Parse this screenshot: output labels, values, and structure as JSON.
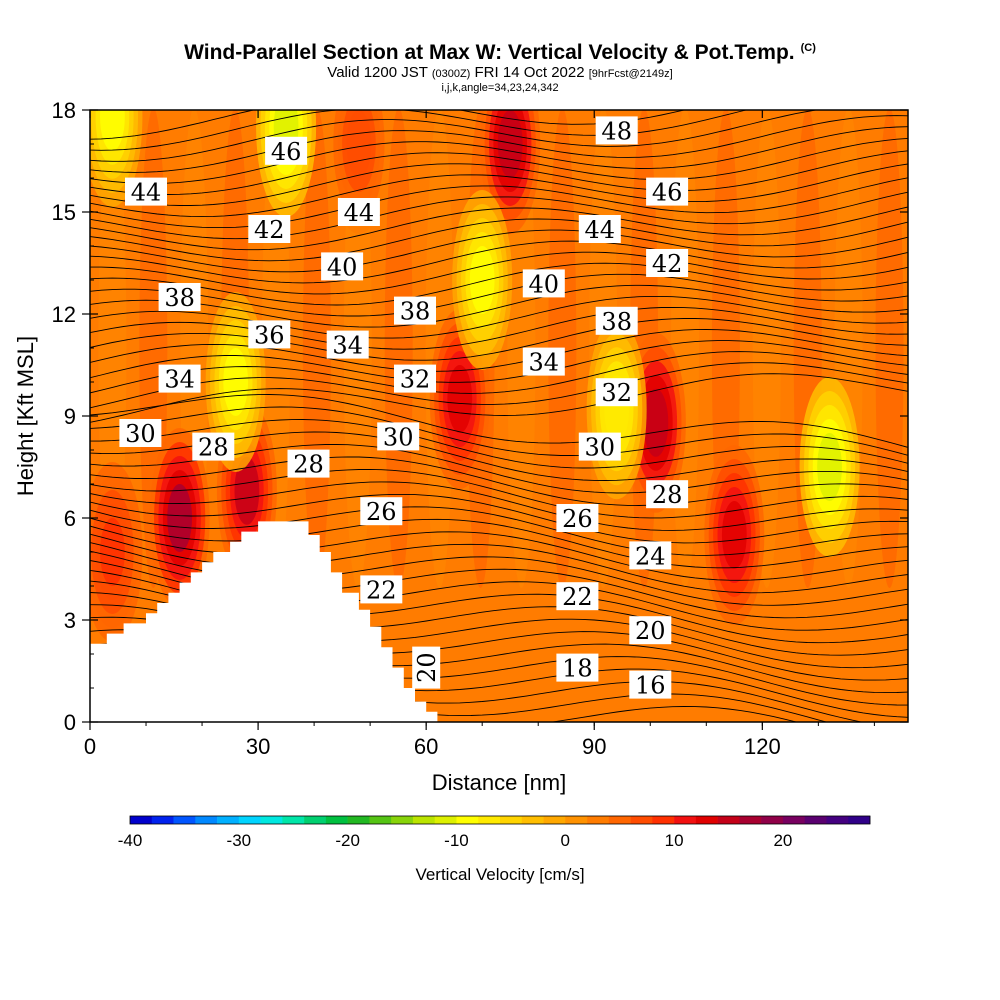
{
  "header": {
    "title": "Wind-Parallel Section at Max W: Vertical Velocity & Pot.Temp.",
    "title_suffix": "(C)",
    "valid_prefix": "Valid 1200 JST",
    "valid_utc": "(0300Z)",
    "valid_date": "FRI 14 Oct 2022",
    "forecast_info": "[9hrFcst@2149z]",
    "section_info": "i,j,k,angle=34,23,24,342"
  },
  "chart_data": {
    "type": "heatmap",
    "xlabel": "Distance [nm]",
    "ylabel": "Height [Kft MSL]",
    "xlim": [
      0,
      146
    ],
    "ylim": [
      0,
      18
    ],
    "x_ticks": [
      "0",
      "30",
      "60",
      "90",
      "120"
    ],
    "x_tick_values": [
      0,
      30,
      60,
      90,
      120
    ],
    "y_ticks": [
      "0",
      "3",
      "6",
      "9",
      "12",
      "15",
      "18"
    ],
    "y_tick_values": [
      0,
      3,
      6,
      9,
      12,
      15,
      18
    ],
    "terrain": [
      [
        0,
        2.3
      ],
      [
        3,
        2.3
      ],
      [
        3,
        2.6
      ],
      [
        6,
        2.6
      ],
      [
        6,
        2.9
      ],
      [
        10,
        2.9
      ],
      [
        10,
        3.2
      ],
      [
        12,
        3.2
      ],
      [
        12,
        3.5
      ],
      [
        14,
        3.5
      ],
      [
        14,
        3.8
      ],
      [
        16,
        3.8
      ],
      [
        16,
        4.1
      ],
      [
        18,
        4.1
      ],
      [
        18,
        4.4
      ],
      [
        20,
        4.4
      ],
      [
        20,
        4.7
      ],
      [
        22,
        4.7
      ],
      [
        22,
        5.0
      ],
      [
        25,
        5.0
      ],
      [
        25,
        5.3
      ],
      [
        27,
        5.3
      ],
      [
        27,
        5.6
      ],
      [
        30,
        5.6
      ],
      [
        30,
        5.9
      ],
      [
        39,
        5.9
      ],
      [
        39,
        5.5
      ],
      [
        41,
        5.5
      ],
      [
        41,
        5.0
      ],
      [
        43,
        5.0
      ],
      [
        43,
        4.4
      ],
      [
        45,
        4.4
      ],
      [
        45,
        3.8
      ],
      [
        48,
        3.8
      ],
      [
        48,
        3.3
      ],
      [
        50,
        3.3
      ],
      [
        50,
        2.8
      ],
      [
        52,
        2.8
      ],
      [
        52,
        2.2
      ],
      [
        54,
        2.2
      ],
      [
        54,
        1.6
      ],
      [
        56,
        1.6
      ],
      [
        56,
        1.0
      ],
      [
        58,
        1.0
      ],
      [
        58,
        0.6
      ],
      [
        60,
        0.6
      ],
      [
        60,
        0.3
      ],
      [
        62,
        0.3
      ],
      [
        62,
        0
      ]
    ],
    "vertical_velocity_hotspots": [
      {
        "x": 16,
        "y": 6.0,
        "value": 16
      },
      {
        "x": 28,
        "y": 6.8,
        "value": 14
      },
      {
        "x": 66,
        "y": 9.5,
        "value": 13
      },
      {
        "x": 75,
        "y": 17.0,
        "value": 15
      },
      {
        "x": 101,
        "y": 8.8,
        "value": 15
      },
      {
        "x": 115,
        "y": 5.5,
        "value": 12
      },
      {
        "x": 4,
        "y": 5.0,
        "value": 8
      },
      {
        "x": 48,
        "y": 17.0,
        "value": 7
      },
      {
        "x": 26,
        "y": 10.0,
        "value": -10
      },
      {
        "x": 70,
        "y": 13.0,
        "value": -10
      },
      {
        "x": 35,
        "y": 17.5,
        "value": -12
      },
      {
        "x": 132,
        "y": 7.5,
        "value": -12
      },
      {
        "x": 94,
        "y": 9.2,
        "value": -8
      },
      {
        "x": 4,
        "y": 17.8,
        "value": -9
      }
    ],
    "contour_labels": [
      {
        "text": "48",
        "x": 94,
        "y": 17.4
      },
      {
        "text": "46",
        "x": 35,
        "y": 16.8
      },
      {
        "text": "46",
        "x": 103,
        "y": 15.6
      },
      {
        "text": "44",
        "x": 10,
        "y": 15.6
      },
      {
        "text": "44",
        "x": 48,
        "y": 15.0
      },
      {
        "text": "44",
        "x": 91,
        "y": 14.5
      },
      {
        "text": "42",
        "x": 32,
        "y": 14.5
      },
      {
        "text": "42",
        "x": 103,
        "y": 13.5
      },
      {
        "text": "40",
        "x": 45,
        "y": 13.4
      },
      {
        "text": "40",
        "x": 81,
        "y": 12.9
      },
      {
        "text": "38",
        "x": 16,
        "y": 12.5
      },
      {
        "text": "38",
        "x": 58,
        "y": 12.1
      },
      {
        "text": "38",
        "x": 94,
        "y": 11.8
      },
      {
        "text": "36",
        "x": 32,
        "y": 11.4
      },
      {
        "text": "34",
        "x": 46,
        "y": 11.1
      },
      {
        "text": "34",
        "x": 81,
        "y": 10.6
      },
      {
        "text": "34",
        "x": 16,
        "y": 10.1
      },
      {
        "text": "32",
        "x": 58,
        "y": 10.1
      },
      {
        "text": "32",
        "x": 94,
        "y": 9.7
      },
      {
        "text": "30",
        "x": 9,
        "y": 8.5
      },
      {
        "text": "30",
        "x": 55,
        "y": 8.4
      },
      {
        "text": "30",
        "x": 91,
        "y": 8.1
      },
      {
        "text": "28",
        "x": 22,
        "y": 8.1
      },
      {
        "text": "28",
        "x": 39,
        "y": 7.6
      },
      {
        "text": "28",
        "x": 103,
        "y": 6.7
      },
      {
        "text": "26",
        "x": 52,
        "y": 6.2
      },
      {
        "text": "26",
        "x": 87,
        "y": 6.0
      },
      {
        "text": "24",
        "x": 100,
        "y": 4.9
      },
      {
        "text": "22",
        "x": 52,
        "y": 3.9
      },
      {
        "text": "22",
        "x": 87,
        "y": 3.7
      },
      {
        "text": "20",
        "x": 100,
        "y": 2.7
      },
      {
        "text": "20",
        "x": 60,
        "y": 1.6,
        "rotate": -90
      },
      {
        "text": "18",
        "x": 87,
        "y": 1.6
      },
      {
        "text": "16",
        "x": 100,
        "y": 1.1
      }
    ],
    "colorbar": {
      "title": "Vertical Velocity [cm/s]",
      "min": -40,
      "max": 28,
      "step": 2,
      "tick_labels": [
        "-40",
        "-30",
        "-20",
        "-10",
        "0",
        "10",
        "20"
      ],
      "tick_values": [
        -40,
        -30,
        -20,
        -10,
        0,
        10,
        20
      ],
      "colors": [
        "#0000cc",
        "#0022ee",
        "#0055ff",
        "#0088ff",
        "#00b0ff",
        "#00d4ff",
        "#00e8e0",
        "#00e6a8",
        "#00d070",
        "#00c040",
        "#22b822",
        "#55c414",
        "#88d40a",
        "#bbe400",
        "#ddf000",
        "#ffff00",
        "#ffea00",
        "#ffd400",
        "#ffbe00",
        "#ffa800",
        "#ff9200",
        "#ff7c00",
        "#ff6600",
        "#ff4c00",
        "#ff3000",
        "#f21010",
        "#e00000",
        "#c40018",
        "#a80030",
        "#900048",
        "#780060",
        "#5a0070",
        "#440080",
        "#300088"
      ]
    }
  }
}
